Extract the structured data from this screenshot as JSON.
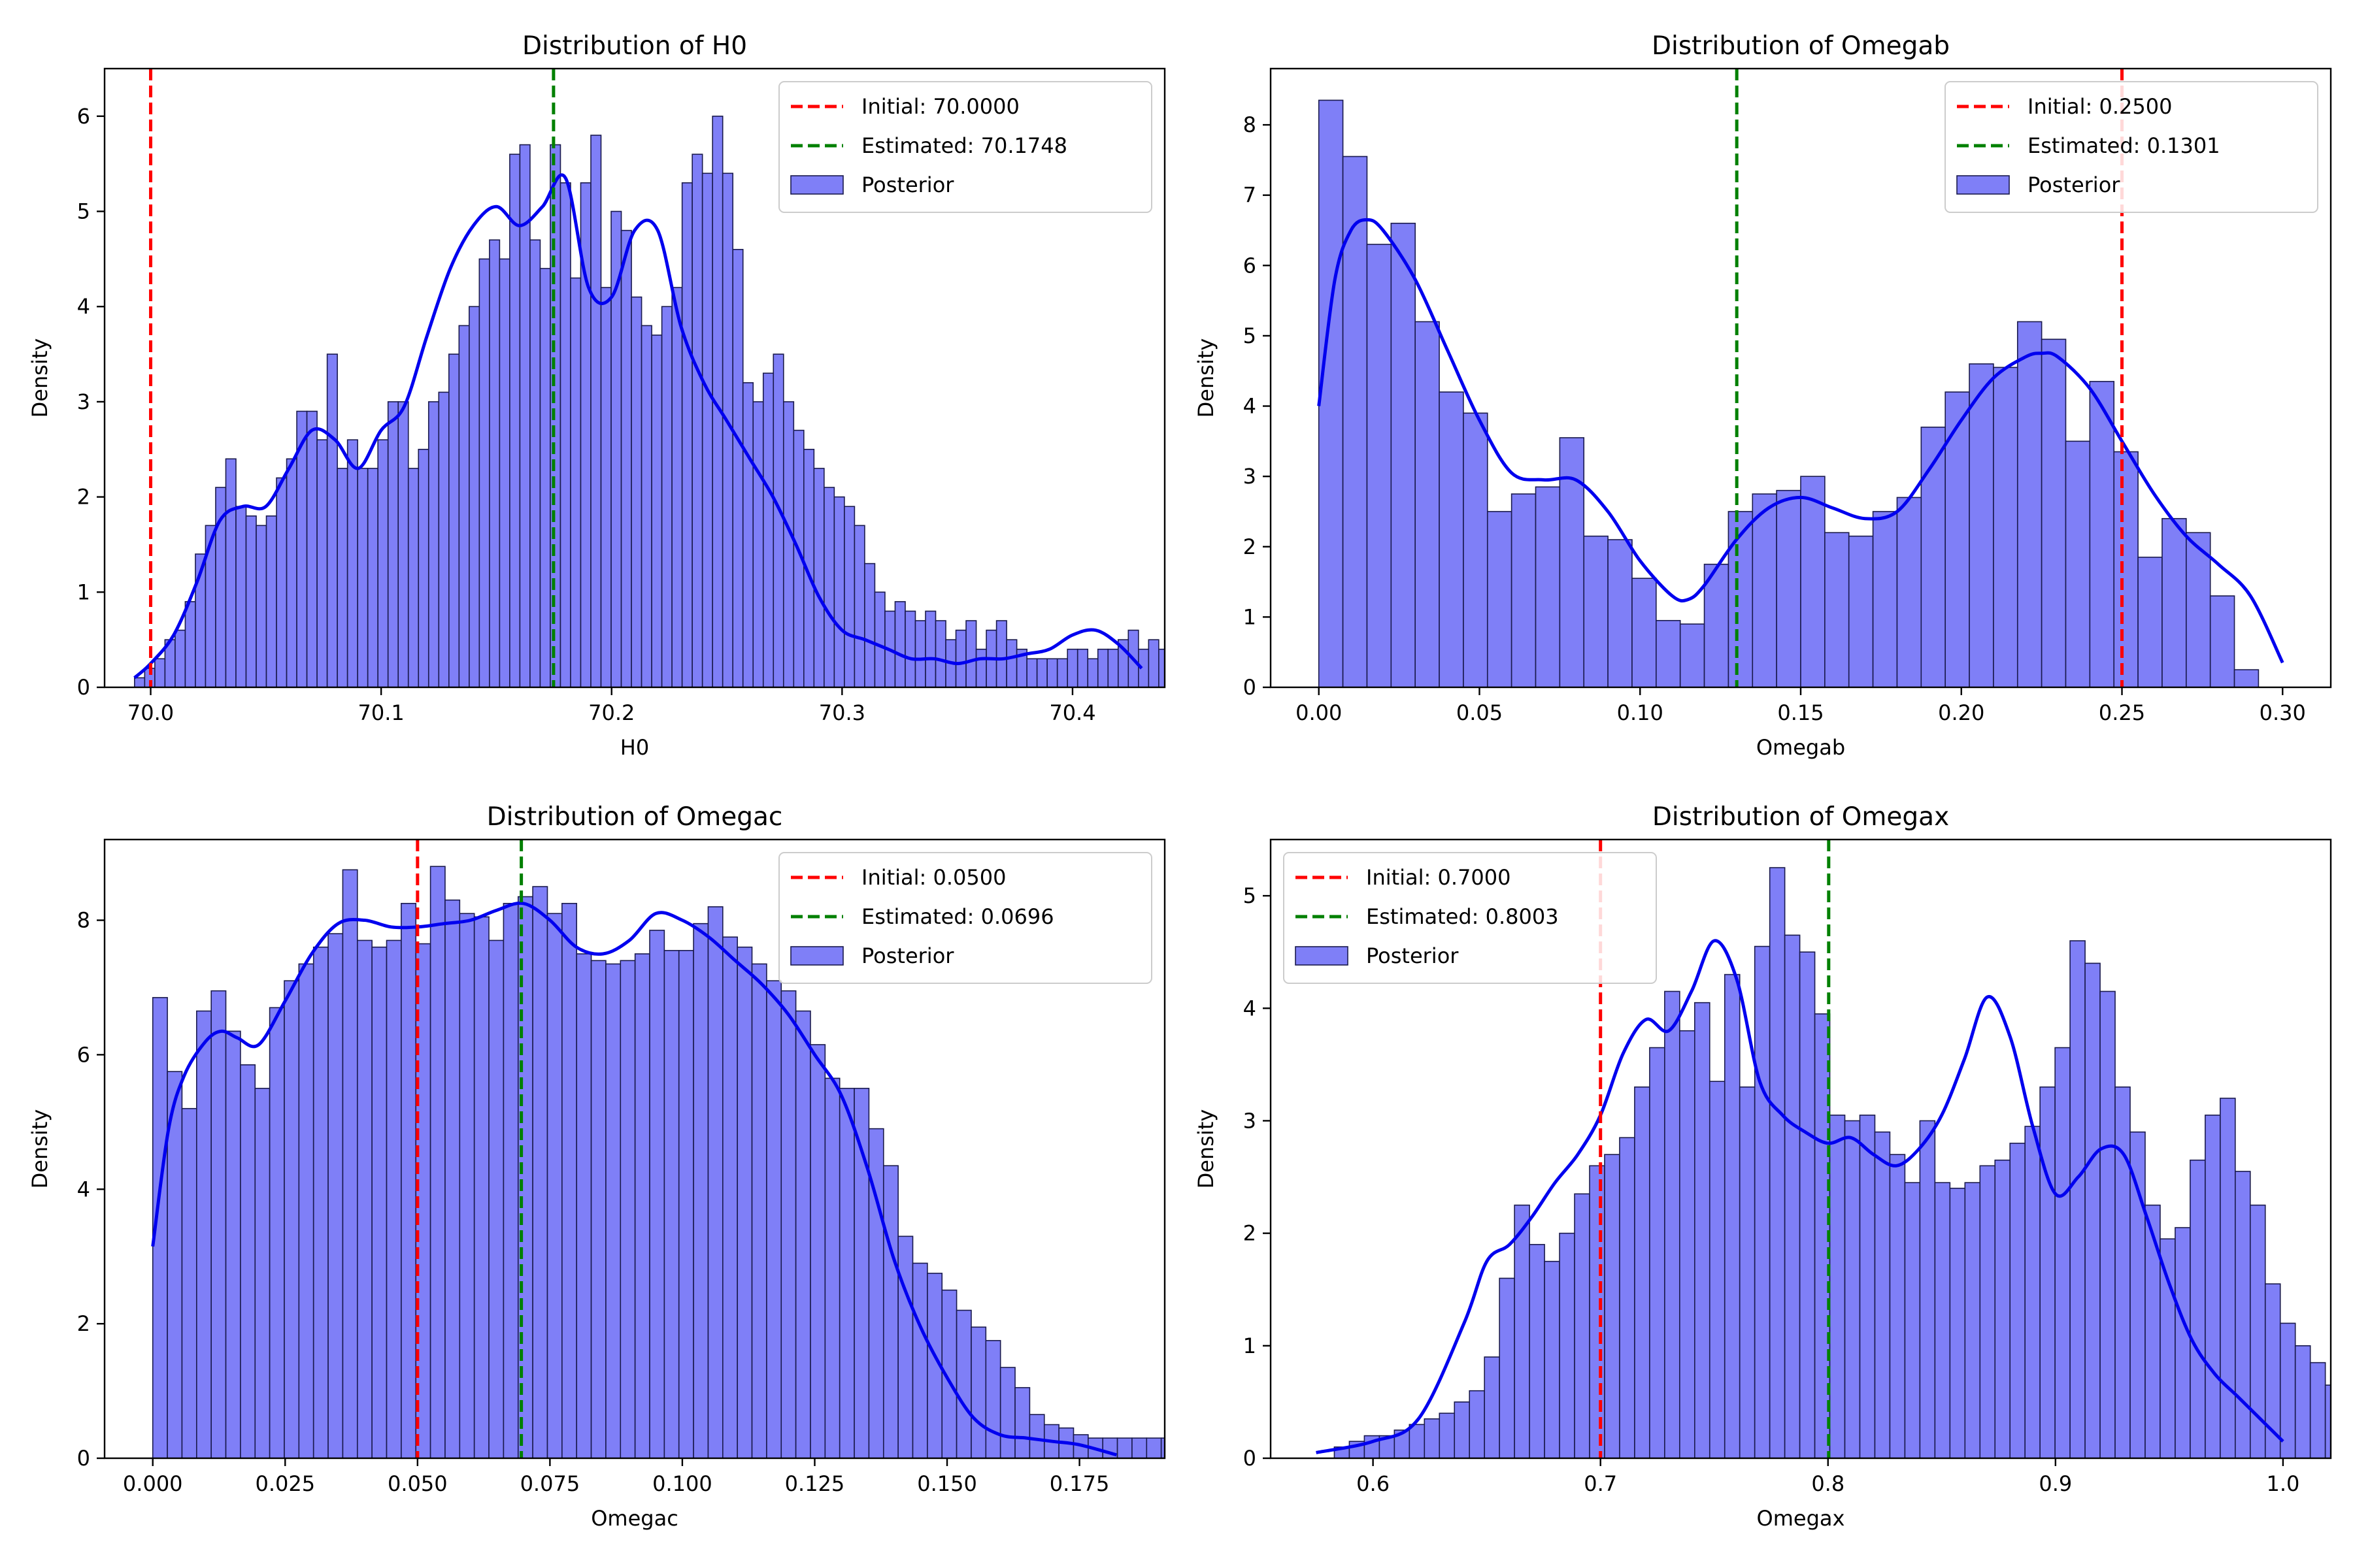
{
  "colors": {
    "initial_line": "#ff0000",
    "estimated_line": "#008000",
    "bar_fill": "#7f7ff7",
    "bar_edge": "#1a1a4d",
    "kde_line": "#0000ee"
  },
  "chart_data": [
    {
      "type": "bar",
      "title": "Distribution of H0",
      "xlabel": "H0",
      "ylabel": "Density",
      "xlim": [
        69.98,
        70.44
      ],
      "ylim": [
        0,
        6.5
      ],
      "xticks": [
        70.0,
        70.1,
        70.2,
        70.3,
        70.4
      ],
      "xtick_labels": [
        "70.0",
        "70.1",
        "70.2",
        "70.3",
        "70.4"
      ],
      "yticks": [
        0,
        1,
        2,
        3,
        4,
        5,
        6
      ],
      "ytick_labels": [
        "0",
        "1",
        "2",
        "3",
        "4",
        "5",
        "6"
      ],
      "legend_position": "top-right",
      "legend": {
        "initial": "Initial: 70.0000",
        "estimated": "Estimated: 70.1748",
        "posterior": "Posterior"
      },
      "initial_value": 70.0,
      "estimated_value": 70.1748,
      "bin_start": 69.993,
      "bin_width": 0.0044,
      "values": [
        0.1,
        0.2,
        0.3,
        0.5,
        0.6,
        0.9,
        1.4,
        1.7,
        2.1,
        2.4,
        1.9,
        1.8,
        1.7,
        1.8,
        2.2,
        2.4,
        2.9,
        2.9,
        2.6,
        3.5,
        2.3,
        2.6,
        2.3,
        2.3,
        2.6,
        3.0,
        3.0,
        2.3,
        2.5,
        3.0,
        3.1,
        3.5,
        3.8,
        4.0,
        4.5,
        4.7,
        4.5,
        5.6,
        5.7,
        4.7,
        4.4,
        5.7,
        5.3,
        4.3,
        5.3,
        5.8,
        4.2,
        5.0,
        4.8,
        4.1,
        3.8,
        3.7,
        4.0,
        4.2,
        5.3,
        5.6,
        5.4,
        6.0,
        5.4,
        4.6,
        3.2,
        3.0,
        3.3,
        3.5,
        3.0,
        2.7,
        2.5,
        2.3,
        2.1,
        2.0,
        1.9,
        1.7,
        1.3,
        1.0,
        0.8,
        0.9,
        0.8,
        0.7,
        0.8,
        0.7,
        0.5,
        0.6,
        0.7,
        0.4,
        0.6,
        0.7,
        0.5,
        0.4,
        0.3,
        0.3,
        0.3,
        0.3,
        0.4,
        0.4,
        0.3,
        0.4,
        0.4,
        0.5,
        0.6,
        0.4,
        0.5,
        0.4,
        0.3,
        0.2
      ],
      "kde": {
        "x": [
          69.993,
          70.0,
          70.01,
          70.02,
          70.03,
          70.04,
          70.05,
          70.06,
          70.07,
          70.08,
          70.09,
          70.1,
          70.11,
          70.12,
          70.13,
          70.14,
          70.15,
          70.16,
          70.17,
          70.18,
          70.19,
          70.2,
          70.21,
          70.22,
          70.23,
          70.24,
          70.25,
          70.26,
          70.27,
          70.28,
          70.29,
          70.3,
          70.31,
          70.32,
          70.33,
          70.34,
          70.35,
          70.36,
          70.37,
          70.38,
          70.39,
          70.4,
          70.41,
          70.42,
          70.43
        ],
        "y": [
          0.1,
          0.25,
          0.55,
          1.1,
          1.75,
          1.9,
          1.9,
          2.3,
          2.7,
          2.6,
          2.3,
          2.7,
          2.95,
          3.7,
          4.4,
          4.85,
          5.05,
          4.85,
          5.05,
          5.35,
          4.2,
          4.1,
          4.8,
          4.8,
          3.8,
          3.2,
          2.8,
          2.4,
          2.0,
          1.5,
          0.95,
          0.6,
          0.5,
          0.4,
          0.3,
          0.3,
          0.25,
          0.3,
          0.3,
          0.35,
          0.4,
          0.55,
          0.6,
          0.45,
          0.2
        ]
      }
    },
    {
      "type": "bar",
      "title": "Distribution of Omegab",
      "xlabel": "Omegab",
      "ylabel": "Density",
      "xlim": [
        -0.015,
        0.315
      ],
      "ylim": [
        0,
        8.8
      ],
      "xticks": [
        0.0,
        0.05,
        0.1,
        0.15,
        0.2,
        0.25,
        0.3
      ],
      "xtick_labels": [
        "0.00",
        "0.05",
        "0.10",
        "0.15",
        "0.20",
        "0.25",
        "0.30"
      ],
      "yticks": [
        0,
        1,
        2,
        3,
        4,
        5,
        6,
        7,
        8
      ],
      "ytick_labels": [
        "0",
        "1",
        "2",
        "3",
        "4",
        "5",
        "6",
        "7",
        "8"
      ],
      "legend_position": "top-right",
      "legend": {
        "initial": "Initial: 0.2500",
        "estimated": "Estimated: 0.1301",
        "posterior": "Posterior"
      },
      "initial_value": 0.25,
      "estimated_value": 0.1301,
      "bin_start": 0.0,
      "bin_width": 0.0075,
      "values": [
        8.35,
        7.55,
        6.3,
        6.6,
        5.2,
        4.2,
        3.9,
        2.5,
        2.75,
        2.85,
        3.55,
        2.15,
        2.1,
        1.55,
        0.95,
        0.9,
        1.75,
        2.5,
        2.75,
        2.8,
        3.0,
        2.2,
        2.15,
        2.5,
        2.7,
        3.7,
        4.2,
        4.6,
        4.55,
        5.2,
        4.95,
        3.5,
        4.35,
        3.35,
        1.85,
        2.4,
        2.2,
        1.3,
        0.25
      ],
      "kde": {
        "x": [
          0.0,
          0.005,
          0.01,
          0.015,
          0.02,
          0.03,
          0.04,
          0.05,
          0.06,
          0.07,
          0.08,
          0.09,
          0.1,
          0.11,
          0.115,
          0.12,
          0.13,
          0.14,
          0.15,
          0.16,
          0.17,
          0.18,
          0.19,
          0.2,
          0.21,
          0.22,
          0.225,
          0.23,
          0.24,
          0.25,
          0.26,
          0.27,
          0.28,
          0.29,
          0.3
        ],
        "y": [
          4.0,
          5.8,
          6.5,
          6.65,
          6.5,
          5.8,
          4.8,
          3.8,
          3.05,
          2.95,
          2.95,
          2.5,
          1.8,
          1.3,
          1.25,
          1.45,
          2.1,
          2.55,
          2.7,
          2.55,
          2.4,
          2.5,
          3.1,
          3.8,
          4.4,
          4.7,
          4.75,
          4.7,
          4.25,
          3.5,
          2.75,
          2.15,
          1.75,
          1.3,
          0.35
        ]
      }
    },
    {
      "type": "bar",
      "title": "Distribution of Omegac",
      "xlabel": "Omegac",
      "ylabel": "Density",
      "xlim": [
        -0.0091,
        0.1911
      ],
      "ylim": [
        0,
        9.2
      ],
      "xticks": [
        0.0,
        0.025,
        0.05,
        0.075,
        0.1,
        0.125,
        0.15,
        0.175
      ],
      "xtick_labels": [
        "0.000",
        "0.025",
        "0.050",
        "0.075",
        "0.100",
        "0.125",
        "0.150",
        "0.175"
      ],
      "yticks": [
        0,
        2,
        4,
        6,
        8
      ],
      "ytick_labels": [
        "0",
        "2",
        "4",
        "6",
        "8"
      ],
      "legend_position": "top-right",
      "legend": {
        "initial": "Initial: 0.0500",
        "estimated": "Estimated: 0.0696",
        "posterior": "Posterior"
      },
      "initial_value": 0.05,
      "estimated_value": 0.0696,
      "bin_start": 0.0,
      "bin_width": 0.00276,
      "values": [
        6.85,
        5.75,
        5.2,
        6.65,
        6.95,
        6.35,
        5.85,
        5.5,
        6.7,
        7.1,
        7.35,
        7.6,
        7.8,
        8.75,
        7.7,
        7.6,
        7.7,
        8.25,
        7.65,
        8.8,
        8.3,
        8.1,
        8.05,
        7.7,
        8.25,
        8.35,
        8.5,
        8.1,
        8.25,
        7.5,
        7.4,
        7.35,
        7.4,
        7.5,
        7.85,
        7.55,
        7.55,
        7.95,
        8.2,
        7.75,
        7.6,
        7.35,
        7.1,
        6.95,
        6.65,
        6.15,
        5.65,
        5.5,
        5.5,
        4.9,
        4.35,
        3.3,
        2.9,
        2.75,
        2.5,
        2.2,
        1.95,
        1.75,
        1.35,
        1.05,
        0.65,
        0.5,
        0.45,
        0.35,
        0.3,
        0.3,
        0.3,
        0.3,
        0.3,
        0.3,
        0.25,
        0.3,
        0.25,
        0.2,
        0.25,
        0.3
      ],
      "kde": {
        "x": [
          0.0,
          0.003,
          0.006,
          0.01,
          0.013,
          0.016,
          0.02,
          0.025,
          0.03,
          0.035,
          0.04,
          0.045,
          0.05,
          0.055,
          0.06,
          0.065,
          0.07,
          0.075,
          0.08,
          0.085,
          0.09,
          0.095,
          0.1,
          0.105,
          0.11,
          0.115,
          0.12,
          0.125,
          0.13,
          0.135,
          0.14,
          0.145,
          0.15,
          0.155,
          0.16,
          0.165,
          0.17,
          0.175,
          0.182
        ],
        "y": [
          3.15,
          4.9,
          5.7,
          6.2,
          6.35,
          6.25,
          6.15,
          6.8,
          7.5,
          7.95,
          8.0,
          7.9,
          7.9,
          7.95,
          8.0,
          8.15,
          8.25,
          8.0,
          7.6,
          7.5,
          7.7,
          8.1,
          8.0,
          7.75,
          7.4,
          7.05,
          6.6,
          6.0,
          5.4,
          4.3,
          2.95,
          1.95,
          1.2,
          0.6,
          0.35,
          0.3,
          0.25,
          0.2,
          0.05
        ]
      }
    },
    {
      "type": "bar",
      "title": "Distribution of Omegax",
      "xlabel": "Omegax",
      "ylabel": "Density",
      "xlim": [
        0.555,
        1.021
      ],
      "ylim": [
        0,
        5.5
      ],
      "xticks": [
        0.6,
        0.7,
        0.8,
        0.9,
        1.0
      ],
      "xtick_labels": [
        "0.6",
        "0.7",
        "0.8",
        "0.9",
        "1.0"
      ],
      "yticks": [
        0,
        1,
        2,
        3,
        4,
        5
      ],
      "ytick_labels": [
        "0",
        "1",
        "2",
        "3",
        "4",
        "5"
      ],
      "legend_position": "top-left",
      "legend": {
        "initial": "Initial: 0.7000",
        "estimated": "Estimated: 0.8003",
        "posterior": "Posterior"
      },
      "initial_value": 0.7,
      "estimated_value": 0.8003,
      "bin_start": 0.583,
      "bin_width": 0.0066,
      "values": [
        0.1,
        0.15,
        0.2,
        0.2,
        0.25,
        0.3,
        0.35,
        0.4,
        0.5,
        0.6,
        0.9,
        1.6,
        2.25,
        1.9,
        1.75,
        2.0,
        2.35,
        2.6,
        2.7,
        2.85,
        3.3,
        3.65,
        4.15,
        3.8,
        4.05,
        3.35,
        4.3,
        3.3,
        4.55,
        5.25,
        4.65,
        4.5,
        3.95,
        3.05,
        3.0,
        3.05,
        2.9,
        2.7,
        2.45,
        3.0,
        2.45,
        2.4,
        2.45,
        2.6,
        2.65,
        2.8,
        2.95,
        3.3,
        3.65,
        4.6,
        4.4,
        4.15,
        3.3,
        2.9,
        2.25,
        1.95,
        2.05,
        2.65,
        3.05,
        3.2,
        2.55,
        2.25,
        1.55,
        1.2,
        1.0,
        0.85,
        0.65,
        0.45,
        0.35,
        0.2
      ],
      "kde": {
        "x": [
          0.575,
          0.6,
          0.62,
          0.64,
          0.65,
          0.66,
          0.67,
          0.68,
          0.69,
          0.7,
          0.71,
          0.72,
          0.73,
          0.74,
          0.75,
          0.76,
          0.77,
          0.78,
          0.79,
          0.8,
          0.81,
          0.82,
          0.83,
          0.84,
          0.85,
          0.86,
          0.87,
          0.88,
          0.89,
          0.9,
          0.91,
          0.92,
          0.93,
          0.94,
          0.95,
          0.96,
          0.97,
          0.98,
          0.99,
          1.0
        ],
        "y": [
          0.05,
          0.15,
          0.35,
          1.2,
          1.75,
          1.9,
          2.15,
          2.45,
          2.7,
          3.05,
          3.6,
          3.9,
          3.8,
          4.15,
          4.6,
          4.25,
          3.35,
          3.05,
          2.9,
          2.8,
          2.85,
          2.7,
          2.6,
          2.75,
          3.05,
          3.55,
          4.1,
          3.75,
          2.95,
          2.35,
          2.5,
          2.75,
          2.7,
          2.15,
          1.55,
          1.05,
          0.75,
          0.55,
          0.35,
          0.15
        ]
      }
    }
  ]
}
